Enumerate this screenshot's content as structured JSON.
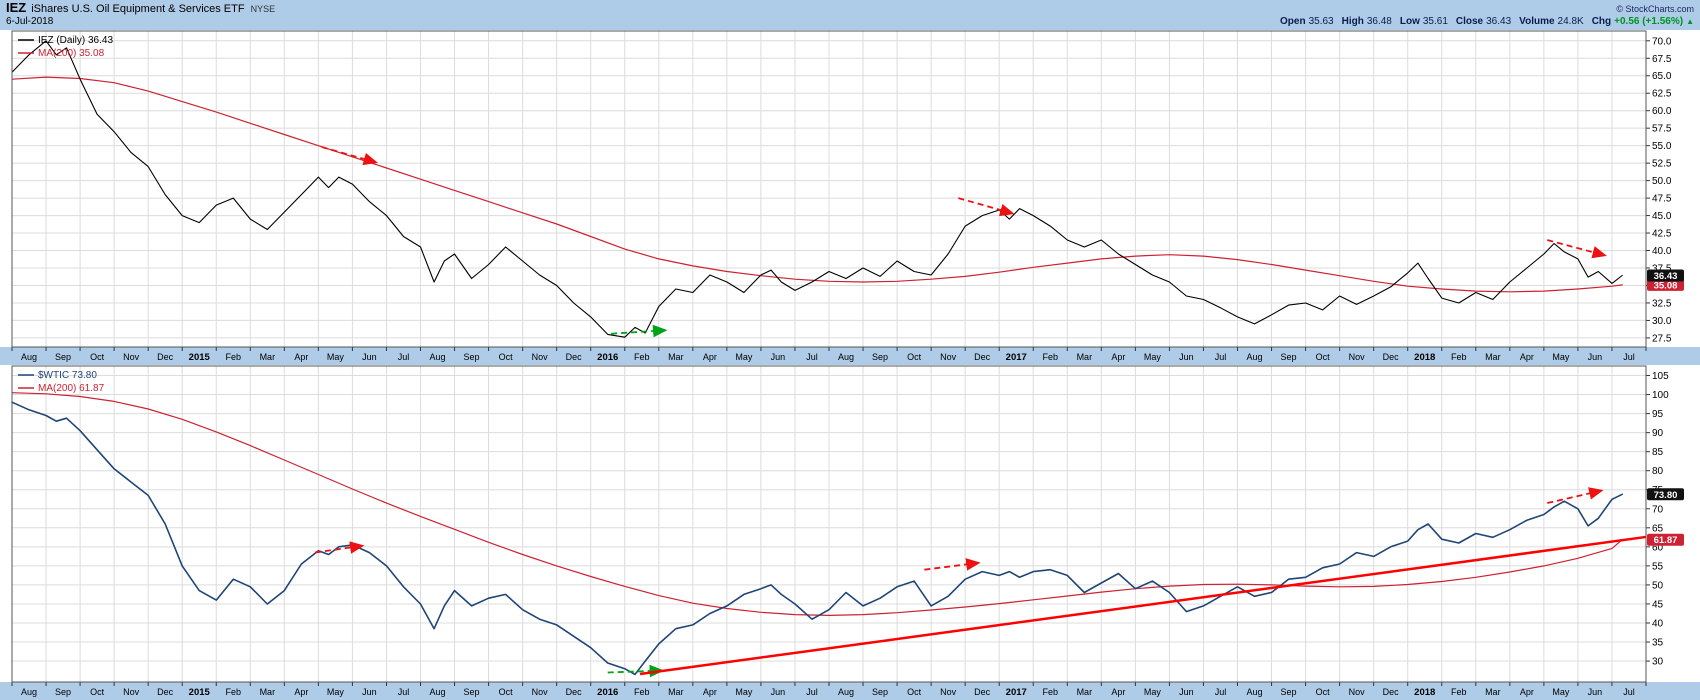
{
  "header": {
    "symbol": "IEZ",
    "name": "iShares U.S. Oil Equipment & Services ETF",
    "exchange": "NYSE",
    "copyright": "© StockCharts.com",
    "date": "6-Jul-2018",
    "quote": [
      {
        "label": "Open",
        "value": "35.63",
        "positive": false
      },
      {
        "label": "High",
        "value": "36.48",
        "positive": false
      },
      {
        "label": "Low",
        "value": "35.61",
        "positive": false
      },
      {
        "label": "Close",
        "value": "36.43",
        "positive": false
      },
      {
        "label": "Volume",
        "value": "24.8K",
        "positive": false
      },
      {
        "label": "Chg",
        "value": "+0.56 (+1.56%)",
        "positive": true
      }
    ]
  },
  "icons": {
    "change-up-icon": "▲"
  },
  "colors": {
    "header_bg": "#AECBE8",
    "axis_bg": "#AECBE8",
    "grid": "#DCDCDC",
    "border": "#555555",
    "iez_line": "#000000",
    "wtic_line": "#1F4576",
    "ma_line": "#CC2233",
    "annotation_red": "#EE1111",
    "annotation_green": "#00A318",
    "tag_text": "#FFFFFF"
  },
  "x_labels": [
    "Aug",
    "Sep",
    "Oct",
    "Nov",
    "Dec",
    "2015",
    "Feb",
    "Mar",
    "Apr",
    "May",
    "Jun",
    "Jul",
    "Aug",
    "Sep",
    "Oct",
    "Nov",
    "Dec",
    "2016",
    "Feb",
    "Mar",
    "Apr",
    "May",
    "Jun",
    "Jul",
    "Aug",
    "Sep",
    "Oct",
    "Nov",
    "Dec",
    "2017",
    "Feb",
    "Mar",
    "Apr",
    "May",
    "Jun",
    "Jul",
    "Aug",
    "Sep",
    "Oct",
    "Nov",
    "Dec",
    "2018",
    "Feb",
    "Mar",
    "Apr",
    "May",
    "Jun",
    "Jul"
  ],
  "chart_data": [
    {
      "type": "line",
      "symbol": "IEZ",
      "title": "IEZ (Daily)",
      "ylim": [
        26.2,
        71.4
      ],
      "yticks": [
        70,
        67.5,
        65,
        62.5,
        60,
        57.5,
        55,
        52.5,
        50,
        47.5,
        45,
        42.5,
        40,
        37.5,
        35,
        32.5,
        30,
        27.5
      ],
      "ytick_labels": [
        "70.0",
        "67.5",
        "65.0",
        "62.5",
        "60.0",
        "57.5",
        "55.0",
        "52.5",
        "50.0",
        "47.5",
        "45.0",
        "42.5",
        "40.0",
        "37.5",
        "35.0",
        "32.5",
        "30.0",
        "27.5"
      ],
      "legend": [
        {
          "label": "IEZ (Daily) 36.43",
          "color": "#000000"
        },
        {
          "label": "MA(200) 35.08",
          "color": "#CC2233"
        }
      ],
      "tags": [
        {
          "label": "35.08",
          "value": 35.08,
          "bg": "#CC2233"
        },
        {
          "label": "36.43",
          "value": 36.43,
          "bg": "#111111"
        }
      ],
      "series": [
        {
          "name": "ma200-line",
          "color": "#CC2233",
          "width": 1.2,
          "x": [
            0,
            1,
            2,
            3,
            4,
            5,
            6,
            7,
            8,
            9,
            10,
            11,
            12,
            13,
            14,
            15,
            16,
            17,
            18,
            19,
            20,
            21,
            22,
            23,
            24,
            25,
            26,
            27,
            28,
            29,
            30,
            31,
            32,
            33,
            34,
            35,
            36,
            37,
            38,
            39,
            40,
            41,
            42,
            43,
            44,
            45,
            46,
            47,
            47.3
          ],
          "y": [
            64.5,
            64.8,
            64.6,
            64.0,
            62.8,
            61.3,
            59.8,
            58.2,
            56.6,
            55.0,
            53.4,
            51.8,
            50.2,
            48.6,
            47.0,
            45.4,
            43.8,
            42.0,
            40.2,
            38.8,
            37.8,
            37.0,
            36.4,
            35.9,
            35.6,
            35.5,
            35.6,
            35.9,
            36.3,
            36.9,
            37.6,
            38.2,
            38.8,
            39.2,
            39.4,
            39.2,
            38.7,
            38.0,
            37.2,
            36.4,
            35.6,
            34.9,
            34.5,
            34.2,
            34.1,
            34.2,
            34.5,
            34.9,
            35.08
          ]
        },
        {
          "name": "iez-price-line",
          "color": "#000000",
          "width": 1.1,
          "x": [
            0,
            0.5,
            1,
            1.3,
            1.6,
            2,
            2.5,
            3,
            3.5,
            4,
            4.5,
            5,
            5.5,
            6,
            6.5,
            7,
            7.5,
            8,
            8.5,
            9,
            9.3,
            9.6,
            10,
            10.5,
            11,
            11.5,
            12,
            12.4,
            12.7,
            13,
            13.5,
            14,
            14.5,
            15,
            15.5,
            16,
            16.5,
            17,
            17.5,
            18,
            18.3,
            18.6,
            19,
            19.5,
            20,
            20.5,
            21,
            21.5,
            22,
            22.3,
            22.6,
            23,
            23.5,
            24,
            24.5,
            25,
            25.5,
            26,
            26.5,
            27,
            27.5,
            28,
            28.5,
            29,
            29.3,
            29.6,
            30,
            30.5,
            31,
            31.5,
            32,
            32.5,
            33,
            33.5,
            34,
            34.5,
            35,
            35.5,
            36,
            36.5,
            37,
            37.5,
            38,
            38.5,
            39,
            39.5,
            40,
            40.5,
            41,
            41.3,
            41.6,
            42,
            42.5,
            43,
            43.5,
            44,
            44.5,
            45,
            45.3,
            45.6,
            46,
            46.3,
            46.6,
            47,
            47.3
          ],
          "y": [
            65.5,
            68.0,
            70.0,
            68.0,
            69.0,
            64.5,
            59.5,
            57.0,
            54.0,
            52.0,
            48.0,
            45.0,
            44.0,
            46.5,
            47.5,
            44.5,
            43.0,
            45.5,
            48.0,
            50.5,
            49.0,
            50.5,
            49.5,
            47.0,
            45.0,
            42.0,
            40.5,
            35.5,
            38.5,
            39.5,
            36.0,
            38.0,
            40.5,
            38.5,
            36.5,
            35.0,
            32.5,
            30.5,
            28.0,
            27.6,
            29.0,
            28.2,
            32.0,
            34.5,
            34.0,
            36.5,
            35.5,
            34.0,
            36.5,
            37.2,
            35.5,
            34.3,
            35.5,
            37.0,
            36.0,
            37.5,
            36.3,
            38.5,
            37.0,
            36.5,
            39.5,
            43.5,
            45.0,
            45.8,
            44.5,
            46.0,
            45.0,
            43.5,
            41.5,
            40.5,
            41.5,
            39.5,
            38.0,
            36.5,
            35.5,
            33.5,
            33.0,
            31.8,
            30.5,
            29.5,
            30.8,
            32.2,
            32.5,
            31.5,
            33.5,
            32.3,
            33.5,
            34.8,
            36.8,
            38.2,
            36.0,
            33.2,
            32.5,
            34.0,
            33.0,
            35.5,
            37.5,
            39.5,
            41.0,
            39.8,
            38.8,
            36.2,
            37.0,
            35.3,
            36.43
          ]
        }
      ],
      "annotations": [
        {
          "kind": "arrow",
          "color": "#EE1111",
          "dashed": true,
          "from": [
            9.1,
            54.8
          ],
          "to": [
            10.7,
            52.6
          ]
        },
        {
          "kind": "arrow",
          "color": "#EE1111",
          "dashed": true,
          "from": [
            27.8,
            47.5
          ],
          "to": [
            29.4,
            45.3
          ]
        },
        {
          "kind": "arrow",
          "color": "#EE1111",
          "dashed": true,
          "from": [
            45.1,
            41.5
          ],
          "to": [
            46.8,
            39.3
          ]
        },
        {
          "kind": "arrow",
          "color": "#00A318",
          "dashed": true,
          "from": [
            17.6,
            28.1
          ],
          "to": [
            19.2,
            28.6
          ]
        }
      ]
    },
    {
      "type": "line",
      "symbol": "$WTIC",
      "title": "$WTIC",
      "ylim": [
        24.5,
        107.5
      ],
      "yticks": [
        105,
        100,
        95,
        90,
        85,
        80,
        75,
        70,
        65,
        60,
        55,
        50,
        45,
        40,
        35,
        30
      ],
      "ytick_labels": [
        "105",
        "100",
        "95",
        "90",
        "85",
        "80",
        "75",
        "70",
        "65",
        "60",
        "55",
        "50",
        "45",
        "40",
        "35",
        "30"
      ],
      "legend": [
        {
          "label": "$WTIC 73.80",
          "color": "#1F4576"
        },
        {
          "label": "MA(200) 61.87",
          "color": "#CC2233"
        }
      ],
      "tags": [
        {
          "label": "61.87",
          "value": 61.87,
          "bg": "#CC2233"
        },
        {
          "label": "73.80",
          "value": 73.8,
          "bg": "#111111"
        }
      ],
      "series": [
        {
          "name": "ma200-line",
          "color": "#CC2233",
          "width": 1.2,
          "x": [
            0,
            1,
            2,
            3,
            4,
            5,
            6,
            7,
            8,
            9,
            10,
            11,
            12,
            13,
            14,
            15,
            16,
            17,
            18,
            19,
            20,
            21,
            22,
            23,
            24,
            25,
            26,
            27,
            28,
            29,
            30,
            31,
            32,
            33,
            34,
            35,
            36,
            37,
            38,
            39,
            40,
            41,
            42,
            43,
            44,
            45,
            46,
            47,
            47.3
          ],
          "y": [
            100.5,
            100.2,
            99.5,
            98.2,
            96.2,
            93.5,
            90.2,
            86.6,
            82.8,
            79.0,
            75.2,
            71.5,
            68.0,
            64.6,
            61.2,
            58.0,
            55.0,
            52.2,
            49.6,
            47.2,
            45.2,
            43.8,
            42.8,
            42.2,
            42.0,
            42.2,
            42.7,
            43.4,
            44.2,
            45.1,
            46.1,
            47.1,
            48.1,
            49.0,
            49.7,
            50.1,
            50.2,
            50.0,
            49.7,
            49.5,
            49.6,
            50.1,
            50.9,
            52.0,
            53.4,
            55.0,
            57.0,
            59.6,
            61.87
          ]
        },
        {
          "name": "wtic-price-line",
          "color": "#1F4576",
          "width": 1.6,
          "x": [
            0,
            0.5,
            1,
            1.3,
            1.6,
            2,
            2.5,
            3,
            3.5,
            4,
            4.5,
            5,
            5.5,
            6,
            6.5,
            7,
            7.5,
            8,
            8.5,
            9,
            9.3,
            9.6,
            10,
            10.5,
            11,
            11.5,
            12,
            12.4,
            12.7,
            13,
            13.5,
            14,
            14.5,
            15,
            15.5,
            16,
            16.5,
            17,
            17.5,
            18,
            18.3,
            18.6,
            19,
            19.5,
            20,
            20.5,
            21,
            21.5,
            22,
            22.3,
            22.6,
            23,
            23.5,
            24,
            24.5,
            25,
            25.5,
            26,
            26.5,
            27,
            27.5,
            28,
            28.5,
            29,
            29.3,
            29.6,
            30,
            30.5,
            31,
            31.5,
            32,
            32.5,
            33,
            33.5,
            34,
            34.5,
            35,
            35.5,
            36,
            36.5,
            37,
            37.5,
            38,
            38.5,
            39,
            39.5,
            40,
            40.5,
            41,
            41.3,
            41.6,
            42,
            42.5,
            43,
            43.5,
            44,
            44.5,
            45,
            45.3,
            45.6,
            46,
            46.3,
            46.6,
            47,
            47.3
          ],
          "y": [
            98.0,
            96.0,
            94.5,
            93.0,
            93.8,
            90.5,
            85.5,
            80.5,
            77.0,
            73.5,
            66.0,
            55.0,
            48.5,
            46.0,
            51.5,
            49.5,
            45.0,
            48.5,
            55.5,
            59.0,
            58.0,
            60.0,
            60.5,
            58.5,
            55.0,
            49.5,
            45.0,
            38.5,
            44.5,
            48.5,
            44.5,
            46.5,
            47.5,
            43.5,
            41.0,
            39.5,
            36.5,
            33.5,
            29.5,
            28.0,
            26.5,
            30.0,
            34.5,
            38.5,
            39.5,
            42.5,
            44.5,
            47.5,
            49.0,
            50.0,
            47.5,
            45.0,
            41.0,
            43.5,
            48.0,
            44.5,
            46.5,
            49.5,
            51.0,
            44.5,
            47.0,
            51.5,
            53.5,
            52.5,
            53.5,
            52.0,
            53.5,
            54.0,
            52.5,
            48.0,
            50.5,
            53.0,
            49.0,
            51.0,
            48.0,
            43.0,
            44.5,
            47.0,
            49.5,
            47.0,
            48.0,
            51.5,
            52.0,
            54.5,
            55.5,
            58.5,
            57.5,
            60.0,
            61.5,
            64.5,
            66.0,
            62.0,
            61.0,
            63.5,
            62.5,
            64.5,
            67.0,
            68.5,
            70.5,
            72.0,
            70.0,
            65.5,
            67.5,
            72.5,
            73.8
          ]
        }
      ],
      "annotations": [
        {
          "kind": "arrow",
          "color": "#EE1111",
          "dashed": true,
          "from": [
            8.9,
            58.5
          ],
          "to": [
            10.3,
            60.3
          ]
        },
        {
          "kind": "arrow",
          "color": "#EE1111",
          "dashed": true,
          "from": [
            26.8,
            54.0
          ],
          "to": [
            28.4,
            55.8
          ]
        },
        {
          "kind": "arrow",
          "color": "#EE1111",
          "dashed": true,
          "from": [
            45.1,
            71.5
          ],
          "to": [
            46.7,
            74.8
          ]
        },
        {
          "kind": "arrow",
          "color": "#00A318",
          "dashed": true,
          "from": [
            17.5,
            27.0
          ],
          "to": [
            19.1,
            27.5
          ]
        },
        {
          "kind": "trendline",
          "color": "#FF0000",
          "width": 2.5,
          "from": [
            18.45,
            26.6
          ],
          "to": [
            48,
            62.6
          ]
        }
      ]
    }
  ]
}
